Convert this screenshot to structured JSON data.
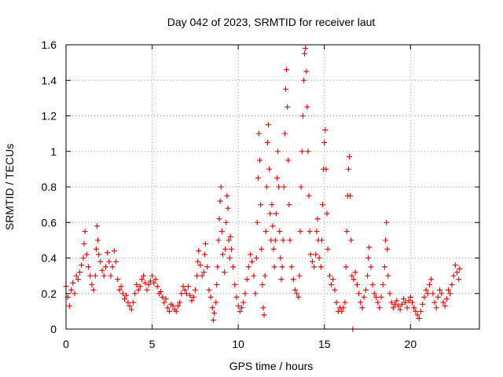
{
  "chart_data": {
    "type": "scatter",
    "title": "Day 042 of 2023, SRMTID for receiver laut",
    "xlabel": "GPS time / hours",
    "ylabel": "SRMTID / TECUs",
    "xlim": [
      0,
      24
    ],
    "ylim": [
      0,
      1.6
    ],
    "x_ticks": [
      0,
      5,
      10,
      15,
      20
    ],
    "x_tick_labels": [
      "0",
      "5",
      "10",
      "15",
      "20"
    ],
    "y_ticks": [
      0,
      0.2,
      0.4,
      0.6,
      0.8,
      1.0,
      1.2,
      1.4,
      1.6
    ],
    "y_tick_labels": [
      "0",
      "0.2",
      "0.4",
      "0.6",
      "0.8",
      "1",
      "1.2",
      "1.4",
      "1.6"
    ],
    "grid": true,
    "marker": "+",
    "series": [
      {
        "name": "SRMTID",
        "color": "#e00000",
        "points": [
          [
            0.0,
            0.24
          ],
          [
            0.1,
            0.18
          ],
          [
            0.2,
            0.13
          ],
          [
            0.3,
            0.22
          ],
          [
            0.4,
            0.26
          ],
          [
            0.5,
            0.2
          ],
          [
            0.6,
            0.3
          ],
          [
            0.7,
            0.28
          ],
          [
            0.8,
            0.32
          ],
          [
            0.9,
            0.36
          ],
          [
            1.0,
            0.4
          ],
          [
            1.05,
            0.48
          ],
          [
            1.1,
            0.55
          ],
          [
            1.2,
            0.42
          ],
          [
            1.3,
            0.35
          ],
          [
            1.4,
            0.3
          ],
          [
            1.5,
            0.25
          ],
          [
            1.6,
            0.22
          ],
          [
            1.7,
            0.3
          ],
          [
            1.75,
            0.45
          ],
          [
            1.8,
            0.58
          ],
          [
            1.85,
            0.5
          ],
          [
            1.9,
            0.42
          ],
          [
            2.0,
            0.38
          ],
          [
            2.1,
            0.33
          ],
          [
            2.2,
            0.3
          ],
          [
            2.3,
            0.35
          ],
          [
            2.4,
            0.43
          ],
          [
            2.5,
            0.38
          ],
          [
            2.6,
            0.3
          ],
          [
            2.7,
            0.35
          ],
          [
            2.8,
            0.44
          ],
          [
            2.9,
            0.38
          ],
          [
            3.0,
            0.28
          ],
          [
            3.1,
            0.22
          ],
          [
            3.2,
            0.24
          ],
          [
            3.3,
            0.2
          ],
          [
            3.4,
            0.17
          ],
          [
            3.5,
            0.19
          ],
          [
            3.6,
            0.15
          ],
          [
            3.7,
            0.13
          ],
          [
            3.8,
            0.11
          ],
          [
            3.9,
            0.15
          ],
          [
            4.0,
            0.2
          ],
          [
            4.1,
            0.25
          ],
          [
            4.2,
            0.22
          ],
          [
            4.3,
            0.24
          ],
          [
            4.4,
            0.28
          ],
          [
            4.5,
            0.3
          ],
          [
            4.6,
            0.26
          ],
          [
            4.7,
            0.22
          ],
          [
            4.8,
            0.25
          ],
          [
            4.9,
            0.27
          ],
          [
            5.0,
            0.3
          ],
          [
            5.1,
            0.26
          ],
          [
            5.2,
            0.28
          ],
          [
            5.3,
            0.24
          ],
          [
            5.4,
            0.2
          ],
          [
            5.5,
            0.21
          ],
          [
            5.6,
            0.18
          ],
          [
            5.7,
            0.15
          ],
          [
            5.8,
            0.17
          ],
          [
            5.9,
            0.12
          ],
          [
            6.0,
            0.1
          ],
          [
            6.1,
            0.14
          ],
          [
            6.2,
            0.13
          ],
          [
            6.3,
            0.11
          ],
          [
            6.4,
            0.1
          ],
          [
            6.5,
            0.13
          ],
          [
            6.6,
            0.15
          ],
          [
            6.7,
            0.2
          ],
          [
            6.8,
            0.24
          ],
          [
            6.9,
            0.22
          ],
          [
            7.0,
            0.2
          ],
          [
            7.1,
            0.24
          ],
          [
            7.2,
            0.19
          ],
          [
            7.3,
            0.16
          ],
          [
            7.4,
            0.18
          ],
          [
            7.5,
            0.22
          ],
          [
            7.6,
            0.3
          ],
          [
            7.65,
            0.38
          ],
          [
            7.7,
            0.44
          ],
          [
            7.8,
            0.36
          ],
          [
            7.9,
            0.3
          ],
          [
            8.0,
            0.32
          ],
          [
            8.05,
            0.42
          ],
          [
            8.1,
            0.48
          ],
          [
            8.2,
            0.35
          ],
          [
            8.3,
            0.22
          ],
          [
            8.4,
            0.18
          ],
          [
            8.5,
            0.12
          ],
          [
            8.55,
            0.05
          ],
          [
            8.6,
            0.09
          ],
          [
            8.7,
            0.15
          ],
          [
            8.75,
            0.25
          ],
          [
            8.8,
            0.35
          ],
          [
            8.85,
            0.5
          ],
          [
            8.9,
            0.62
          ],
          [
            8.95,
            0.72
          ],
          [
            9.0,
            0.8
          ],
          [
            9.05,
            0.55
          ],
          [
            9.1,
            0.42
          ],
          [
            9.2,
            0.32
          ],
          [
            9.25,
            0.45
          ],
          [
            9.3,
            0.6
          ],
          [
            9.35,
            0.75
          ],
          [
            9.4,
            0.68
          ],
          [
            9.45,
            0.5
          ],
          [
            9.5,
            0.4
          ],
          [
            9.55,
            0.52
          ],
          [
            9.6,
            0.45
          ],
          [
            9.7,
            0.35
          ],
          [
            9.8,
            0.25
          ],
          [
            9.9,
            0.18
          ],
          [
            10.0,
            0.13
          ],
          [
            10.1,
            0.1
          ],
          [
            10.2,
            0.12
          ],
          [
            10.3,
            0.15
          ],
          [
            10.4,
            0.2
          ],
          [
            10.5,
            0.28
          ],
          [
            10.6,
            0.35
          ],
          [
            10.7,
            0.42
          ],
          [
            10.8,
            0.38
          ],
          [
            10.9,
            0.3
          ],
          [
            11.0,
            0.2
          ],
          [
            11.05,
            0.4
          ],
          [
            11.1,
            0.6
          ],
          [
            11.15,
            0.85
          ],
          [
            11.2,
            1.1
          ],
          [
            11.25,
            0.95
          ],
          [
            11.3,
            0.7
          ],
          [
            11.35,
            0.45
          ],
          [
            11.4,
            0.25
          ],
          [
            11.45,
            0.12
          ],
          [
            11.5,
            0.08
          ],
          [
            11.55,
            0.3
          ],
          [
            11.6,
            0.55
          ],
          [
            11.65,
            0.8
          ],
          [
            11.7,
            1.05
          ],
          [
            11.75,
            1.15
          ],
          [
            11.8,
            0.9
          ],
          [
            11.85,
            0.65
          ],
          [
            11.9,
            0.5
          ],
          [
            11.95,
            0.7
          ],
          [
            12.0,
            0.58
          ],
          [
            12.05,
            0.45
          ],
          [
            12.1,
            0.35
          ],
          [
            12.15,
            0.5
          ],
          [
            12.2,
            0.65
          ],
          [
            12.25,
            0.85
          ],
          [
            12.3,
            1.0
          ],
          [
            12.35,
            0.8
          ],
          [
            12.4,
            0.55
          ],
          [
            12.45,
            0.4
          ],
          [
            12.5,
            0.28
          ],
          [
            12.55,
            0.35
          ],
          [
            12.6,
            0.5
          ],
          [
            12.65,
            0.8
          ],
          [
            12.7,
            1.1
          ],
          [
            12.75,
            1.35
          ],
          [
            12.8,
            1.46
          ],
          [
            12.85,
            1.25
          ],
          [
            12.9,
            0.95
          ],
          [
            12.95,
            0.7
          ],
          [
            13.0,
            0.5
          ],
          [
            13.1,
            0.35
          ],
          [
            13.2,
            0.28
          ],
          [
            13.3,
            0.22
          ],
          [
            13.4,
            0.2
          ],
          [
            13.5,
            0.18
          ],
          [
            13.55,
            0.3
          ],
          [
            13.6,
            0.55
          ],
          [
            13.65,
            0.8
          ],
          [
            13.7,
            1.0
          ],
          [
            13.75,
            1.2
          ],
          [
            13.8,
            1.4
          ],
          [
            13.85,
            1.55
          ],
          [
            13.9,
            1.58
          ],
          [
            13.95,
            1.45
          ],
          [
            14.0,
            1.25
          ],
          [
            14.05,
            1.0
          ],
          [
            14.1,
            0.75
          ],
          [
            14.15,
            0.55
          ],
          [
            14.2,
            0.42
          ],
          [
            14.3,
            0.38
          ],
          [
            14.4,
            0.35
          ],
          [
            14.5,
            0.42
          ],
          [
            14.55,
            0.55
          ],
          [
            14.6,
            0.62
          ],
          [
            14.65,
            0.5
          ],
          [
            14.7,
            0.4
          ],
          [
            14.8,
            0.35
          ],
          [
            14.85,
            0.5
          ],
          [
            14.9,
            0.7
          ],
          [
            14.95,
            0.9
          ],
          [
            15.0,
            1.05
          ],
          [
            15.05,
            1.12
          ],
          [
            15.1,
            0.9
          ],
          [
            15.15,
            0.65
          ],
          [
            15.2,
            0.45
          ],
          [
            15.3,
            0.3
          ],
          [
            15.4,
            0.25
          ],
          [
            15.5,
            0.28
          ],
          [
            15.6,
            0.22
          ],
          [
            15.7,
            0.15
          ],
          [
            15.8,
            0.1
          ],
          [
            15.9,
            0.12
          ],
          [
            16.0,
            0.1
          ],
          [
            16.1,
            0.12
          ],
          [
            16.2,
            0.15
          ],
          [
            16.25,
            0.35
          ],
          [
            16.3,
            0.55
          ],
          [
            16.35,
            0.75
          ],
          [
            16.4,
            0.9
          ],
          [
            16.45,
            0.97
          ],
          [
            16.5,
            0.75
          ],
          [
            16.55,
            0.5
          ],
          [
            16.6,
            0.3
          ],
          [
            16.65,
            0.0
          ],
          [
            16.7,
            0.28
          ],
          [
            16.8,
            0.32
          ],
          [
            16.9,
            0.25
          ],
          [
            17.0,
            0.2
          ],
          [
            17.1,
            0.15
          ],
          [
            17.2,
            0.12
          ],
          [
            17.3,
            0.18
          ],
          [
            17.4,
            0.22
          ],
          [
            17.5,
            0.3
          ],
          [
            17.55,
            0.4
          ],
          [
            17.6,
            0.46
          ],
          [
            17.7,
            0.35
          ],
          [
            17.8,
            0.25
          ],
          [
            17.9,
            0.2
          ],
          [
            18.0,
            0.18
          ],
          [
            18.1,
            0.15
          ],
          [
            18.2,
            0.12
          ],
          [
            18.3,
            0.18
          ],
          [
            18.4,
            0.25
          ],
          [
            18.5,
            0.35
          ],
          [
            18.55,
            0.5
          ],
          [
            18.6,
            0.6
          ],
          [
            18.65,
            0.45
          ],
          [
            18.7,
            0.3
          ],
          [
            18.8,
            0.2
          ],
          [
            18.9,
            0.15
          ],
          [
            19.0,
            0.12
          ],
          [
            19.1,
            0.14
          ],
          [
            19.2,
            0.16
          ],
          [
            19.3,
            0.13
          ],
          [
            19.4,
            0.11
          ],
          [
            19.5,
            0.14
          ],
          [
            19.6,
            0.17
          ],
          [
            19.7,
            0.15
          ],
          [
            19.8,
            0.12
          ],
          [
            19.9,
            0.16
          ],
          [
            20.0,
            0.18
          ],
          [
            20.1,
            0.15
          ],
          [
            20.2,
            0.12
          ],
          [
            20.3,
            0.1
          ],
          [
            20.4,
            0.08
          ],
          [
            20.5,
            0.06
          ],
          [
            20.6,
            0.1
          ],
          [
            20.7,
            0.14
          ],
          [
            20.8,
            0.18
          ],
          [
            20.9,
            0.22
          ],
          [
            21.0,
            0.2
          ],
          [
            21.1,
            0.25
          ],
          [
            21.2,
            0.28
          ],
          [
            21.3,
            0.2
          ],
          [
            21.4,
            0.15
          ],
          [
            21.5,
            0.12
          ],
          [
            21.6,
            0.18
          ],
          [
            21.7,
            0.22
          ],
          [
            21.8,
            0.2
          ],
          [
            21.9,
            0.15
          ],
          [
            22.0,
            0.13
          ],
          [
            22.1,
            0.17
          ],
          [
            22.2,
            0.22
          ],
          [
            22.3,
            0.2
          ],
          [
            22.4,
            0.25
          ],
          [
            22.5,
            0.3
          ],
          [
            22.6,
            0.36
          ],
          [
            22.7,
            0.32
          ],
          [
            22.8,
            0.28
          ],
          [
            22.85,
            0.34
          ]
        ]
      }
    ]
  }
}
